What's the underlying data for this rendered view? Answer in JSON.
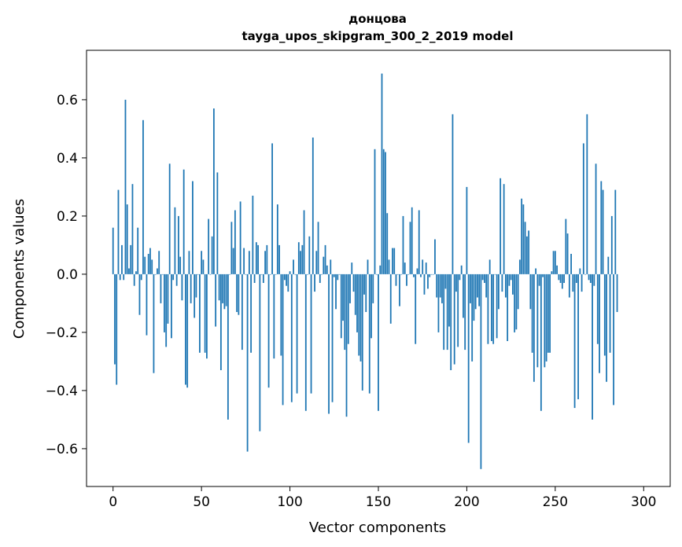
{
  "chart_data": {
    "type": "bar",
    "title": "донцова",
    "subtitle": "tayga_upos_skipgram_300_2_2019 model",
    "xlabel": "Vector components",
    "ylabel": "Components values",
    "xlim": [
      -15,
      315
    ],
    "ylim": [
      -0.73,
      0.77
    ],
    "xticks": [
      0,
      50,
      100,
      150,
      200,
      250,
      300
    ],
    "xtick_labels": [
      "0",
      "50",
      "100",
      "150",
      "200",
      "250",
      "300"
    ],
    "yticks": [
      -0.6,
      -0.4,
      -0.2,
      0.0,
      0.2,
      0.4,
      0.6
    ],
    "ytick_labels": [
      "−0.6",
      "−0.4",
      "−0.2",
      "0.0",
      "0.2",
      "0.4",
      "0.6"
    ],
    "bar_color": "#1f77b4",
    "series": [
      {
        "name": "components",
        "values": [
          0.16,
          -0.31,
          -0.38,
          0.29,
          -0.02,
          0.1,
          -0.02,
          0.6,
          0.24,
          0.02,
          0.1,
          0.31,
          -0.04,
          0.01,
          0.16,
          -0.14,
          -0.02,
          0.53,
          0.06,
          -0.21,
          0.07,
          0.09,
          0.05,
          -0.34,
          0.0,
          0.02,
          0.08,
          -0.1,
          0.0,
          -0.2,
          -0.25,
          -0.17,
          0.38,
          -0.22,
          -0.02,
          0.23,
          -0.04,
          0.2,
          0.06,
          -0.09,
          0.36,
          -0.38,
          -0.39,
          0.08,
          -0.1,
          0.32,
          -0.15,
          -0.08,
          0.0,
          -0.27,
          0.08,
          0.05,
          -0.27,
          -0.29,
          0.19,
          0.0,
          0.13,
          0.57,
          -0.18,
          0.35,
          -0.09,
          -0.33,
          -0.1,
          -0.12,
          -0.11,
          -0.5,
          0.0,
          0.18,
          0.09,
          0.22,
          -0.13,
          -0.14,
          0.25,
          -0.26,
          0.09,
          0.0,
          -0.61,
          0.08,
          -0.27,
          0.27,
          -0.03,
          0.11,
          0.1,
          -0.54,
          0.0,
          -0.03,
          0.08,
          0.1,
          -0.39,
          0.0,
          0.45,
          -0.29,
          0.0,
          0.24,
          0.1,
          -0.28,
          -0.45,
          -0.02,
          -0.04,
          -0.06,
          0.01,
          -0.44,
          0.05,
          0.0,
          -0.41,
          0.11,
          0.08,
          0.1,
          0.22,
          -0.47,
          0.0,
          0.13,
          -0.41,
          0.47,
          -0.06,
          0.08,
          0.18,
          -0.03,
          0.0,
          0.06,
          0.1,
          0.03,
          -0.48,
          0.05,
          -0.44,
          -0.01,
          -0.12,
          -0.02,
          0.0,
          -0.22,
          -0.16,
          -0.26,
          -0.49,
          -0.24,
          -0.1,
          0.04,
          -0.06,
          -0.14,
          -0.2,
          -0.28,
          -0.3,
          -0.4,
          -0.07,
          -0.13,
          0.05,
          -0.41,
          -0.22,
          -0.1,
          0.43,
          0.0,
          -0.47,
          0.03,
          0.69,
          0.43,
          0.42,
          0.21,
          0.05,
          -0.17,
          0.09,
          0.09,
          -0.04,
          0.0,
          -0.11,
          0.0,
          0.2,
          0.04,
          -0.04,
          0.0,
          0.18,
          0.23,
          -0.01,
          -0.24,
          0.02,
          0.22,
          -0.01,
          0.05,
          -0.07,
          0.04,
          -0.05,
          -0.01,
          0.0,
          0.0,
          0.12,
          -0.08,
          -0.2,
          -0.08,
          -0.1,
          -0.26,
          -0.05,
          -0.26,
          -0.18,
          -0.33,
          0.55,
          -0.31,
          -0.06,
          -0.25,
          -0.02,
          0.03,
          -0.15,
          -0.26,
          0.3,
          -0.58,
          -0.1,
          -0.3,
          -0.16,
          -0.12,
          -0.08,
          -0.11,
          -0.67,
          -0.02,
          -0.03,
          -0.08,
          -0.24,
          0.05,
          -0.23,
          -0.24,
          0.0,
          -0.22,
          -0.12,
          0.33,
          -0.06,
          0.31,
          -0.08,
          -0.23,
          -0.04,
          -0.02,
          -0.07,
          -0.2,
          -0.19,
          -0.12,
          0.05,
          0.26,
          0.24,
          0.18,
          0.13,
          0.15,
          -0.12,
          -0.27,
          -0.37,
          0.02,
          -0.32,
          -0.04,
          -0.47,
          -0.01,
          -0.32,
          -0.3,
          -0.27,
          -0.27,
          0.01,
          0.08,
          0.08,
          0.03,
          -0.02,
          -0.03,
          -0.05,
          -0.03,
          0.19,
          0.14,
          -0.08,
          0.07,
          -0.06,
          -0.46,
          -0.03,
          -0.43,
          0.02,
          -0.06,
          0.45,
          0.0,
          0.55,
          -0.02,
          -0.03,
          -0.5,
          -0.04,
          0.38,
          -0.24,
          -0.34,
          0.32,
          0.29,
          -0.28,
          -0.37,
          0.06,
          -0.27,
          0.2,
          -0.45,
          0.29,
          -0.13
        ]
      }
    ]
  }
}
